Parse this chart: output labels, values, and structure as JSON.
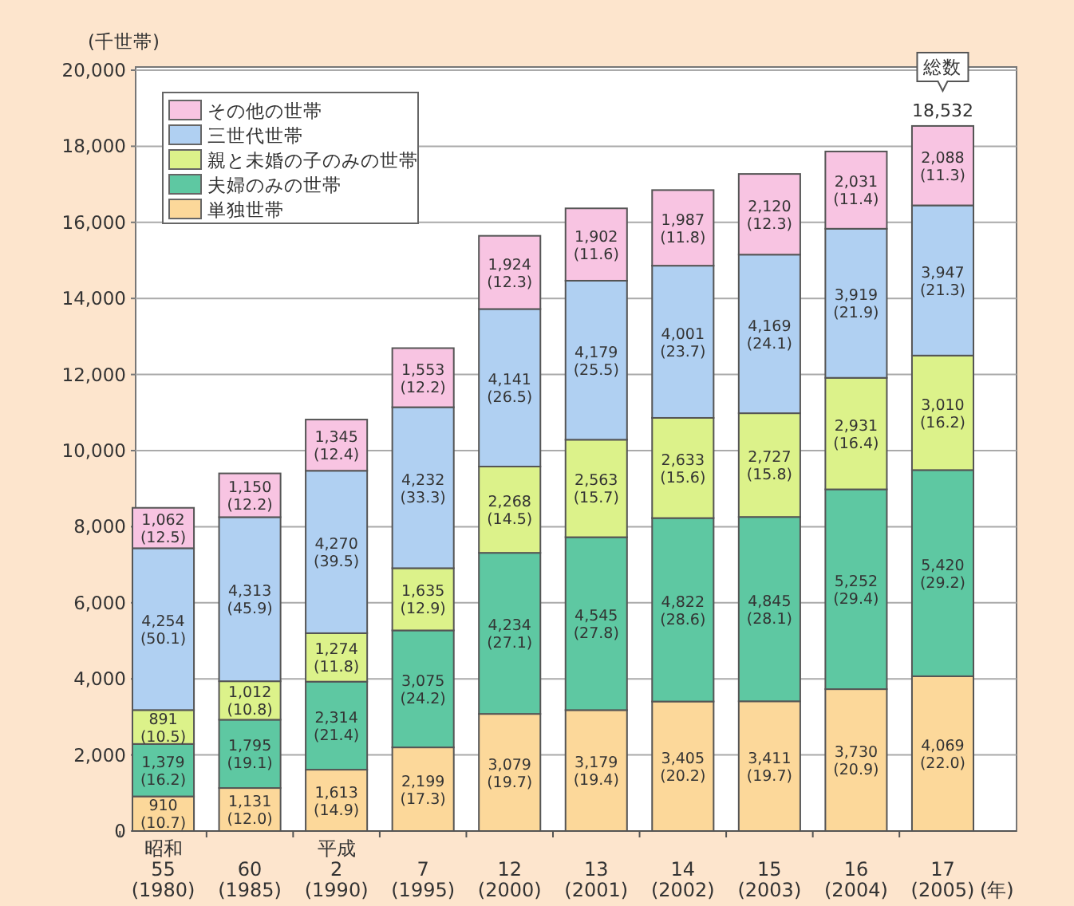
{
  "chart_data": {
    "type": "bar",
    "stacked": true,
    "ylabel": "(千世帯)",
    "xlabel": "(年)",
    "categories": [
      "昭和\n55\n(1980)",
      "60\n(1985)",
      "平成\n2\n(1990)",
      "7\n(1995)",
      "12\n(2000)",
      "13\n(2001)",
      "14\n(2002)",
      "15\n(2003)",
      "16\n(2004)",
      "17\n(2005)"
    ],
    "series": [
      {
        "name": "単独世帯",
        "color": "#fcd89a",
        "values": [
          910,
          1131,
          1613,
          2199,
          3079,
          3179,
          3405,
          3411,
          3730,
          4069
        ],
        "value_labels": [
          "910\n(10.7)",
          "1,131\n(12.0)",
          "1,613\n(14.9)",
          "2,199\n(17.3)",
          "3,079\n(19.7)",
          "3,179\n(19.4)",
          "3,405\n(20.2)",
          "3,411\n(19.7)",
          "3,730\n(20.9)",
          "4,069\n(22.0)"
        ]
      },
      {
        "name": "夫婦のみの世帯",
        "color": "#5ec8a2",
        "values": [
          1379,
          1795,
          2314,
          3075,
          4234,
          4545,
          4822,
          4845,
          5252,
          5420
        ],
        "value_labels": [
          "1,379\n(16.2)",
          "1,795\n(19.1)",
          "2,314\n(21.4)",
          "3,075\n(24.2)",
          "4,234\n(27.1)",
          "4,545\n(27.8)",
          "4,822\n(28.6)",
          "4,845\n(28.1)",
          "5,252\n(29.4)",
          "5,420\n(29.2)"
        ]
      },
      {
        "name": "親と未婚の子のみの世帯",
        "color": "#dcf28a",
        "values": [
          891,
          1012,
          1274,
          1635,
          2268,
          2563,
          2633,
          2727,
          2931,
          3010
        ],
        "value_labels": [
          "891\n(10.5)",
          "1,012\n(10.8)",
          "1,274\n(11.8)",
          "1,635\n(12.9)",
          "2,268\n(14.5)",
          "2,563\n(15.7)",
          "2,633\n(15.6)",
          "2,727\n(15.8)",
          "2,931\n(16.4)",
          "3,010\n(16.2)"
        ]
      },
      {
        "name": "三世代世帯",
        "color": "#b0d0f2",
        "values": [
          4254,
          4313,
          4270,
          4232,
          4141,
          4179,
          4001,
          4169,
          3919,
          3947
        ],
        "value_labels": [
          "4,254\n(50.1)",
          "4,313\n(45.9)",
          "4,270\n(39.5)",
          "4,232\n(33.3)",
          "4,141\n(26.5)",
          "4,179\n(25.5)",
          "4,001\n(23.7)",
          "4,169\n(24.1)",
          "3,919\n(21.9)",
          "3,947\n(21.3)"
        ]
      },
      {
        "name": "その他の世帯",
        "color": "#f8c4e2",
        "values": [
          1062,
          1150,
          1345,
          1553,
          1924,
          1902,
          1987,
          2120,
          2031,
          2088
        ],
        "value_labels": [
          "1,062\n(12.5)",
          "1,150\n(12.2)",
          "1,345\n(12.4)",
          "1,553\n(12.2)",
          "1,924\n(12.3)",
          "1,902\n(11.6)",
          "1,987\n(11.8)",
          "2,120\n(12.3)",
          "2,031\n(11.4)",
          "2,088\n(11.3)"
        ]
      }
    ],
    "totals": [
      null,
      null,
      null,
      null,
      null,
      null,
      null,
      null,
      null,
      "18,532"
    ],
    "annotations": [
      {
        "text": "総数",
        "x": "17\n(2005)",
        "y": 18532
      }
    ],
    "ylim": [
      0,
      20000
    ],
    "yticks": [
      0,
      {
        "value": 2000,
        "label": "2,000"
      },
      {
        "value": 4000,
        "label": "4,000"
      },
      {
        "value": 6000,
        "label": "6,000"
      },
      {
        "value": 8000,
        "label": "8,000"
      },
      {
        "value": 10000,
        "label": "10,000"
      },
      {
        "value": 12000,
        "label": "12,000"
      },
      {
        "value": 14000,
        "label": "14,000"
      },
      {
        "value": 16000,
        "label": "16,000"
      },
      {
        "value": 18000,
        "label": "18,000"
      },
      {
        "value": 20000,
        "label": "20,000"
      }
    ],
    "grid": "y",
    "legend": "top left"
  }
}
